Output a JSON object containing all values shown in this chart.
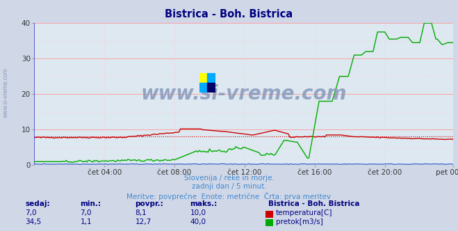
{
  "title": "Bistrica - Boh. Bistrica",
  "title_color": "#000080",
  "bg_color": "#d0d8e8",
  "plot_bg_color": "#dde8f0",
  "grid_major_color": "#ff9999",
  "grid_minor_color": "#ffcccc",
  "left_spine_color": "#4444cc",
  "xlabel_ticks": [
    "čet 04:00",
    "čet 08:00",
    "čet 12:00",
    "čet 16:00",
    "čet 20:00",
    "pet 00:00"
  ],
  "ylim": [
    0,
    40
  ],
  "yticks": [
    0,
    10,
    20,
    30,
    40
  ],
  "n_points": 288,
  "temp_color": "#cc0000",
  "flow_color": "#00aa00",
  "height_color": "#2255cc",
  "watermark_text": "www.si-vreme.com",
  "watermark_color": "#8899bb",
  "subtitle_line1": "Slovenija / reke in morje.",
  "subtitle_line2": "zadnji dan / 5 minut.",
  "subtitle_line3": "Meritve: povprečne  Enote: metrične  Črta: prva meritev",
  "subtitle_color": "#4488cc",
  "legend_title": "Bistrica - Boh. Bistrica",
  "legend_title_color": "#000080",
  "legend_color": "#000080",
  "table_headers": [
    "sedaj:",
    "min.:",
    "povpr.:",
    "maks.:"
  ],
  "table_row1": [
    "7,0",
    "7,0",
    "8,1",
    "10,0"
  ],
  "table_row2": [
    "34,5",
    "1,1",
    "12,7",
    "40,0"
  ],
  "avg_temp": 8.1,
  "avg_flow": 8.1,
  "logo_colors": [
    "#ffff00",
    "#00aaff",
    "#00aaff",
    "#000066"
  ]
}
